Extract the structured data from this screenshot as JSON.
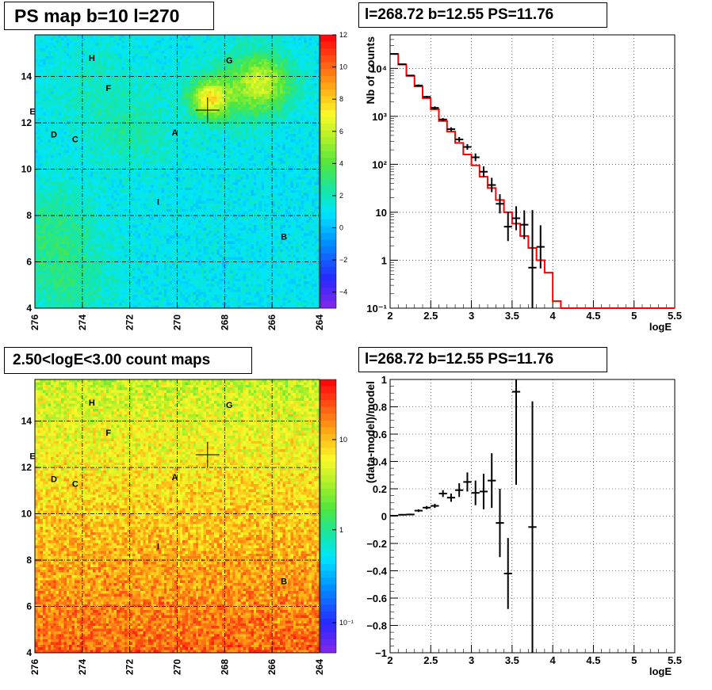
{
  "panels": {
    "top_left_title": "PS map b=10 l=270",
    "top_right_title": "l=268.72 b=12.55 PS=11.76",
    "bottom_left_title": "2.50<logE<3.00 count maps",
    "bottom_right_title": "l=268.72 b=12.55 PS=11.76"
  },
  "chart_data": [
    {
      "type": "heatmap",
      "title": "PS map b=10 l=270",
      "x_ticks": [
        "276",
        "274",
        "272",
        "270",
        "268",
        "266",
        "264"
      ],
      "y_ticks": [
        "4",
        "6",
        "8",
        "10",
        "12",
        "14"
      ],
      "xlim": [
        276,
        264
      ],
      "ylim": [
        4,
        15.8
      ],
      "grid": true,
      "colorbar_ticks": [
        "12",
        "10",
        "8",
        "6",
        "4",
        "2",
        "0",
        "−2",
        "−4"
      ],
      "colorbar_range": [
        -5,
        12
      ],
      "marker": {
        "l": 268.72,
        "b": 12.55
      },
      "sources": [
        {
          "name": "A",
          "l": 270.1,
          "b": 11.6
        },
        {
          "name": "B",
          "l": 265.5,
          "b": 7.1
        },
        {
          "name": "C",
          "l": 274.3,
          "b": 11.3
        },
        {
          "name": "D",
          "l": 275.2,
          "b": 11.5
        },
        {
          "name": "E",
          "l": 276.1,
          "b": 12.5
        },
        {
          "name": "F",
          "l": 272.9,
          "b": 13.5
        },
        {
          "name": "G",
          "l": 267.8,
          "b": 14.7
        },
        {
          "name": "H",
          "l": 273.6,
          "b": 14.8
        },
        {
          "name": "I",
          "l": 270.8,
          "b": 8.6
        }
      ]
    },
    {
      "type": "line",
      "title": "l=268.72 b=12.55 PS=11.76",
      "xlabel": "logE",
      "ylabel": "Nb of counts",
      "yscale": "log",
      "xlim": [
        2,
        5.5
      ],
      "ylim": [
        0.1,
        50000
      ],
      "x_ticks": [
        "2",
        "2.5",
        "3",
        "3.5",
        "4",
        "4.5",
        "5",
        "5.5"
      ],
      "y_ticks": [
        "10⁻¹",
        "1",
        "10",
        "10²",
        "10³",
        "10⁴"
      ],
      "grid": true,
      "model_bins": [
        2.0,
        2.1,
        2.2,
        2.3,
        2.4,
        2.5,
        2.6,
        2.7,
        2.8,
        2.9,
        3.0,
        3.1,
        3.2,
        3.3,
        3.4,
        3.5,
        3.6,
        3.7,
        3.8,
        3.9,
        4.0,
        4.1,
        4.2,
        5.5
      ],
      "model_values": [
        20000,
        12000,
        7000,
        4200,
        2400,
        1400,
        800,
        480,
        280,
        160,
        95,
        55,
        32,
        18,
        10,
        5.8,
        3.2,
        1.8,
        1.0,
        0.55,
        0.14,
        0.1,
        0.1
      ],
      "data_points": [
        {
          "x": 2.05,
          "y": 20000,
          "err": 0.01
        },
        {
          "x": 2.15,
          "y": 12200,
          "err": 0.01
        },
        {
          "x": 2.25,
          "y": 7100,
          "err": 0.01
        },
        {
          "x": 2.35,
          "y": 4400,
          "err": 0.02
        },
        {
          "x": 2.45,
          "y": 2550,
          "err": 0.02
        },
        {
          "x": 2.55,
          "y": 1500,
          "err": 0.03
        },
        {
          "x": 2.65,
          "y": 860,
          "err": 0.03
        },
        {
          "x": 2.75,
          "y": 540,
          "err": 0.04
        },
        {
          "x": 2.85,
          "y": 330,
          "err": 0.05
        },
        {
          "x": 2.95,
          "y": 230,
          "err": 0.06
        },
        {
          "x": 3.05,
          "y": 140,
          "err": 0.08
        },
        {
          "x": 3.15,
          "y": 70,
          "err": 0.11
        },
        {
          "x": 3.25,
          "y": 37,
          "err": 0.15
        },
        {
          "x": 3.35,
          "y": 15,
          "err": 0.2
        },
        {
          "x": 3.45,
          "y": 5,
          "err": 0.3
        },
        {
          "x": 3.55,
          "y": 7.5,
          "err": 0.25
        },
        {
          "x": 3.65,
          "y": 5.5,
          "err": 0.3
        },
        {
          "x": 3.75,
          "y": 0.7,
          "err": 1.2
        },
        {
          "x": 3.85,
          "y": 1.9,
          "err": 0.45
        }
      ]
    },
    {
      "type": "heatmap",
      "title": "2.50<logE<3.00 count maps",
      "x_ticks": [
        "276",
        "274",
        "272",
        "270",
        "268",
        "266",
        "264"
      ],
      "y_ticks": [
        "4",
        "6",
        "8",
        "10",
        "12",
        "14"
      ],
      "xlim": [
        276,
        264
      ],
      "ylim": [
        4,
        15.8
      ],
      "grid": true,
      "colorbar_ticks": [
        "10",
        "1",
        "10⁻¹"
      ],
      "colorbar_scale": "log",
      "marker": {
        "l": 268.72,
        "b": 12.55
      },
      "sources": [
        {
          "name": "A",
          "l": 270.1,
          "b": 11.6
        },
        {
          "name": "B",
          "l": 265.5,
          "b": 7.1
        },
        {
          "name": "C",
          "l": 274.3,
          "b": 11.3
        },
        {
          "name": "D",
          "l": 275.2,
          "b": 11.5
        },
        {
          "name": "E",
          "l": 276.1,
          "b": 12.5
        },
        {
          "name": "F",
          "l": 272.9,
          "b": 13.5
        },
        {
          "name": "G",
          "l": 267.8,
          "b": 14.7
        },
        {
          "name": "H",
          "l": 273.6,
          "b": 14.8
        },
        {
          "name": "I",
          "l": 270.8,
          "b": 8.6
        }
      ]
    },
    {
      "type": "scatter",
      "title": "l=268.72 b=12.55 PS=11.76",
      "xlabel": "logE",
      "ylabel": "(data-model)/model",
      "xlim": [
        2,
        5.5
      ],
      "ylim": [
        -1,
        1
      ],
      "x_ticks": [
        "2",
        "2.5",
        "3",
        "3.5",
        "4",
        "4.5",
        "5",
        "5.5"
      ],
      "y_ticks": [
        "−1",
        "−0.8",
        "−0.6",
        "−0.4",
        "−0.2",
        "0",
        "0.2",
        "0.4",
        "0.6",
        "0.8",
        "1"
      ],
      "grid": true,
      "data_points": [
        {
          "x": 2.05,
          "y": 0.003,
          "err": 0.004
        },
        {
          "x": 2.15,
          "y": 0.01,
          "err": 0.005
        },
        {
          "x": 2.25,
          "y": 0.012,
          "err": 0.006
        },
        {
          "x": 2.35,
          "y": 0.04,
          "err": 0.01
        },
        {
          "x": 2.45,
          "y": 0.062,
          "err": 0.012
        },
        {
          "x": 2.55,
          "y": 0.075,
          "err": 0.015
        },
        {
          "x": 2.65,
          "y": 0.165,
          "err": 0.025
        },
        {
          "x": 2.75,
          "y": 0.135,
          "err": 0.03
        },
        {
          "x": 2.85,
          "y": 0.19,
          "err": 0.05
        },
        {
          "x": 2.95,
          "y": 0.25,
          "err": 0.07
        },
        {
          "x": 3.05,
          "y": 0.17,
          "err": 0.09
        },
        {
          "x": 3.15,
          "y": 0.18,
          "err": 0.13
        },
        {
          "x": 3.25,
          "y": 0.26,
          "err": 0.2
        },
        {
          "x": 3.35,
          "y": -0.05,
          "err": 0.25
        },
        {
          "x": 3.45,
          "y": -0.42,
          "err": 0.26
        },
        {
          "x": 3.55,
          "y": 0.91,
          "err": 0.68
        },
        {
          "x": 3.75,
          "y": -0.08,
          "err": 0.92
        }
      ]
    }
  ]
}
